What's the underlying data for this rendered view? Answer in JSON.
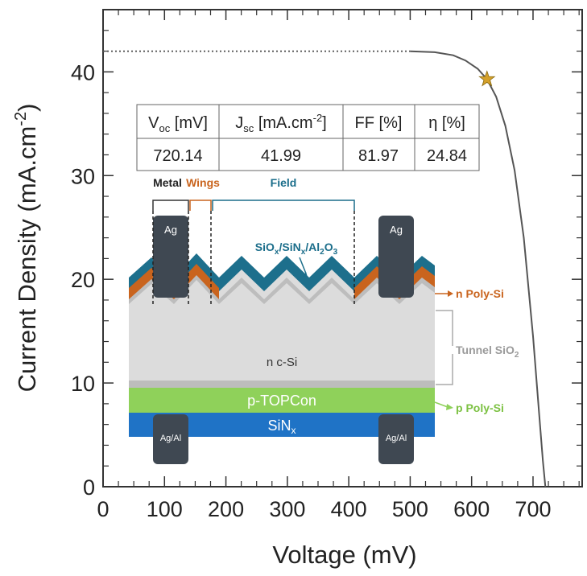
{
  "chart_data": {
    "type": "line",
    "xlabel": "Voltage (mV)",
    "ylabel_main": "Current Density (mA.cm",
    "ylabel_sup": "-2",
    "ylabel_close": ")",
    "xlim": [
      0,
      780
    ],
    "ylim": [
      0,
      46
    ],
    "xticks": [
      0,
      100,
      200,
      300,
      400,
      500,
      600,
      700
    ],
    "yticks": [
      0,
      10,
      20,
      30,
      40
    ],
    "series": [
      {
        "style": "dotted-extension",
        "x": [
          0,
          500
        ],
        "y": [
          41.99,
          41.99
        ]
      },
      {
        "style": "solid",
        "x": [
          500,
          540,
          570,
          590,
          610,
          625,
          640,
          655,
          670,
          685,
          700,
          710,
          716,
          720.14
        ],
        "y": [
          41.99,
          41.9,
          41.6,
          41.1,
          40.3,
          39.3,
          37.6,
          34.8,
          30.5,
          24.0,
          14.5,
          7.0,
          2.5,
          0
        ]
      }
    ],
    "mpp": {
      "x": 625,
      "y": 39.3,
      "marker": "star",
      "color": "#d4a02a"
    }
  },
  "table": {
    "headers": [
      {
        "main": "V",
        "sub": "oc",
        "rest": " [mV]"
      },
      {
        "main": "J",
        "sub": "sc",
        "rest": " [mA.cm",
        "sup": "-2",
        "close": "]"
      },
      {
        "main": "FF [%]"
      },
      {
        "main": "η [%]"
      }
    ],
    "values": [
      "720.14",
      "41.99",
      "81.97",
      "24.84"
    ]
  },
  "diagram": {
    "metal_label": "Metal",
    "wings_label": "Wings",
    "field_label": "Field",
    "passivation_label": {
      "p1": "SiO",
      "s1": "x",
      "p2": "/SiN",
      "s2": "x",
      "p3": "/Al",
      "s3": "2",
      "p4": "O",
      "s4": "3"
    },
    "front_contact": "Ag",
    "rear_contact": "Ag/Al",
    "n_poly": "n Poly-Si",
    "tunnel": {
      "main": "Tunnel SiO",
      "sub": "2"
    },
    "p_poly": "p Poly-Si",
    "bulk": "n c-Si",
    "p_layer": "p-TOPCon",
    "sinx": {
      "main": "SiN",
      "sub": "x"
    },
    "colors": {
      "metal": "#3f4852",
      "wings": "#c9641e",
      "field": "#1a6d8a",
      "passivation": "#1d6f8c",
      "n_poly": "#c9641e",
      "tunnel": "#bdbdbd",
      "bulk": "#dcdcdc",
      "p_poly": "#8fd15a",
      "sinx": "#1f73c6"
    }
  }
}
